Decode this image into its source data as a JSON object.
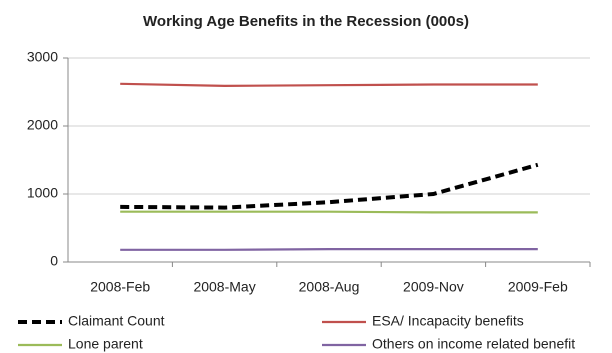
{
  "chart_data": {
    "type": "line",
    "title": "Working Age Benefits in the Recession (000s)",
    "categories": [
      "2008-Feb",
      "2008-May",
      "2008-Aug",
      "2009-Nov",
      "2009-Feb"
    ],
    "series": [
      {
        "name": "Claimant Count",
        "color": "#000000",
        "line_style": "dashed",
        "values": [
          810,
          800,
          880,
          1000,
          1430
        ]
      },
      {
        "name": "ESA/ Incapacity benefits",
        "color": "#c0504d",
        "line_style": "solid",
        "values": [
          2620,
          2590,
          2600,
          2610,
          2610
        ]
      },
      {
        "name": "Lone parent",
        "color": "#9bbb59",
        "line_style": "solid",
        "values": [
          740,
          740,
          740,
          730,
          730
        ]
      },
      {
        "name": "Others on income related benefit",
        "color": "#8064a2",
        "line_style": "solid",
        "values": [
          180,
          180,
          190,
          190,
          190
        ]
      }
    ],
    "ylim": [
      0,
      3000
    ],
    "yticks": [
      0,
      1000,
      2000,
      3000
    ],
    "grid": true,
    "legend": "bottom"
  }
}
